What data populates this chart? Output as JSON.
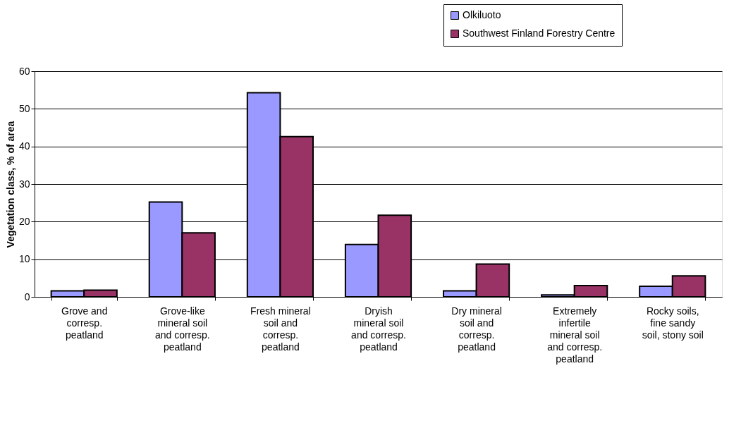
{
  "chart_data": {
    "type": "bar",
    "ylabel": "Vegetation class, % of area",
    "categories": [
      "Grove and\ncorresp.\npeatland",
      "Grove-like\nmineral soil\nand corresp.\npeatland",
      "Fresh mineral\nsoil and\ncorresp.\npeatland",
      "Dryish\nmineral soil\nand corresp.\npeatland",
      "Dry mineral\nsoil and\ncorresp.\npeatland",
      "Extremely\ninfertile\nmineral soil\nand corresp.\npeatland",
      "Rocky soils,\nfine sandy\nsoil, stony soil"
    ],
    "series": [
      {
        "name": "Olkiluoto",
        "color": "#9999ff",
        "values": [
          1.6,
          25.2,
          54.3,
          13.9,
          1.6,
          0.5,
          2.8
        ]
      },
      {
        "name": "Southwest Finland Forestry Centre",
        "color": "#993366",
        "values": [
          1.8,
          17.0,
          42.6,
          21.7,
          8.7,
          3.0,
          5.6
        ]
      }
    ],
    "ylim": [
      0,
      60
    ],
    "yticks": [
      0,
      10,
      20,
      30,
      40,
      50,
      60
    ],
    "grid": "y",
    "legend": "top right"
  }
}
